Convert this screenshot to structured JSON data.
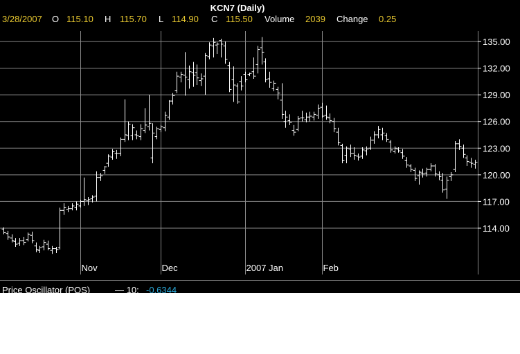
{
  "title": "KCN7 (Daily)",
  "quote": {
    "date": "3/28/2007",
    "open_label": "O",
    "open": "115.10",
    "high_label": "H",
    "high": "115.70",
    "low_label": "L",
    "low": "114.90",
    "close_label": "C",
    "close": "115.50",
    "volume_label": "Volume",
    "volume": "2039",
    "change_label": "Change",
    "change": "0.25"
  },
  "oscillator": {
    "label": "Price Oscillator (POS)",
    "param": "— 10:",
    "value": "-0.6344"
  },
  "colors": {
    "background": "#000000",
    "bars": "#ffffff",
    "grid": "#8a8a8a",
    "quote_text": "#e8c830",
    "quote_label": "#ffffff",
    "oscillator_value": "#2aa8d8"
  },
  "chart_data": {
    "type": "ohlc",
    "title": "KCN7 (Daily)",
    "ylim": [
      111.5,
      136.0
    ],
    "y_ticks": [
      "135.00",
      "132.00",
      "129.00",
      "126.00",
      "123.00",
      "120.00",
      "117.00",
      "114.00"
    ],
    "x_ticks": [
      "Nov",
      "Dec",
      "2007 Jan",
      "Feb"
    ],
    "grid": true,
    "series": [
      {
        "values": [
          [
            113.9,
            114.1,
            113.3,
            113.5
          ],
          [
            113.4,
            113.7,
            112.7,
            113.0
          ],
          [
            112.9,
            113.3,
            112.4,
            112.6
          ],
          [
            112.5,
            112.9,
            111.9,
            112.2
          ],
          [
            112.3,
            112.9,
            112.0,
            112.6
          ],
          [
            112.6,
            113.0,
            112.1,
            112.4
          ],
          [
            112.7,
            113.5,
            112.5,
            113.3
          ],
          [
            113.2,
            113.6,
            112.3,
            112.6
          ],
          [
            112.0,
            112.4,
            111.3,
            111.6
          ],
          [
            111.5,
            112.0,
            111.2,
            111.8
          ],
          [
            111.9,
            112.7,
            111.5,
            112.4
          ],
          [
            112.2,
            112.6,
            111.5,
            111.7
          ],
          [
            111.5,
            112.0,
            111.1,
            111.7
          ],
          [
            111.7,
            111.9,
            111.2,
            111.6
          ],
          [
            111.8,
            116.3,
            111.6,
            116.0
          ],
          [
            116.0,
            116.8,
            115.5,
            116.3
          ],
          [
            116.1,
            116.5,
            115.8,
            116.2
          ],
          [
            116.2,
            116.8,
            116.0,
            116.5
          ],
          [
            116.3,
            117.0,
            116.0,
            116.7
          ],
          [
            116.5,
            117.2,
            116.3,
            117.0
          ],
          [
            117.0,
            119.7,
            116.5,
            117.2
          ],
          [
            117.1,
            117.5,
            116.6,
            117.2
          ],
          [
            117.3,
            117.7,
            116.9,
            117.5
          ],
          [
            117.6,
            120.4,
            117.0,
            119.7
          ],
          [
            119.7,
            120.2,
            119.3,
            119.9
          ],
          [
            120.5,
            121.0,
            120.1,
            120.9
          ],
          [
            121.3,
            122.3,
            120.9,
            122.1
          ],
          [
            122.0,
            122.9,
            121.7,
            122.6
          ],
          [
            122.4,
            122.8,
            121.8,
            122.4
          ],
          [
            122.4,
            124.2,
            122.1,
            124.0
          ],
          [
            124.0,
            128.5,
            123.7,
            124.5
          ],
          [
            124.4,
            126.0,
            123.9,
            125.7
          ],
          [
            124.4,
            125.7,
            123.9,
            125.3
          ],
          [
            124.5,
            125.0,
            124.0,
            124.4
          ],
          [
            124.3,
            125.7,
            123.9,
            125.2
          ],
          [
            125.0,
            127.5,
            124.7,
            125.6
          ],
          [
            125.4,
            129.0,
            125.0,
            125.8
          ],
          [
            121.9,
            125.8,
            121.3,
            124.7
          ],
          [
            124.3,
            125.4,
            124.0,
            125.2
          ],
          [
            125.1,
            125.6,
            124.8,
            125.4
          ],
          [
            125.3,
            127.1,
            124.9,
            126.7
          ],
          [
            126.5,
            128.4,
            126.2,
            128.3
          ],
          [
            128.3,
            129.2,
            127.9,
            128.9
          ],
          [
            129.5,
            131.6,
            129.2,
            131.1
          ],
          [
            131.0,
            131.6,
            130.4,
            131.3
          ],
          [
            131.2,
            133.8,
            128.9,
            131.0
          ],
          [
            130.7,
            132.3,
            129.7,
            131.6
          ],
          [
            131.5,
            132.7,
            129.9,
            131.2
          ],
          [
            131.5,
            132.4,
            130.1,
            130.9
          ],
          [
            130.6,
            131.4,
            130.0,
            130.8
          ],
          [
            131.1,
            133.7,
            129.0,
            133.4
          ],
          [
            133.3,
            134.9,
            133.0,
            134.6
          ],
          [
            134.5,
            135.4,
            133.2,
            134.9
          ],
          [
            134.6,
            134.9,
            133.6,
            134.7
          ],
          [
            135.1,
            135.3,
            133.2,
            134.7
          ],
          [
            134.5,
            135.0,
            132.5,
            133.0
          ],
          [
            132.3,
            132.7,
            129.3,
            129.6
          ],
          [
            130.7,
            132.2,
            128.2,
            130.1
          ],
          [
            130.0,
            130.3,
            128.0,
            128.2
          ],
          [
            130.5,
            131.1,
            129.5,
            130.0
          ],
          [
            131.3,
            131.6,
            130.4,
            130.7
          ],
          [
            131.3,
            131.5,
            131.1,
            131.4
          ],
          [
            131.6,
            133.2,
            130.8,
            131.1
          ],
          [
            132.4,
            134.5,
            131.4,
            134.1
          ],
          [
            134.3,
            135.5,
            132.4,
            133.8
          ],
          [
            132.7,
            133.1,
            130.4,
            130.7
          ],
          [
            130.8,
            131.6,
            129.8,
            130.4
          ],
          [
            129.7,
            130.6,
            129.4,
            130.3
          ],
          [
            129.6,
            129.9,
            128.5,
            129.2
          ],
          [
            128.4,
            130.3,
            126.3,
            126.8
          ],
          [
            126.0,
            127.2,
            125.3,
            126.5
          ],
          [
            126.1,
            126.8,
            125.6,
            125.9
          ],
          [
            125.0,
            125.6,
            124.4,
            124.8
          ],
          [
            125.1,
            126.6,
            124.9,
            126.3
          ],
          [
            126.4,
            127.2,
            126.0,
            126.4
          ],
          [
            126.2,
            127.0,
            125.9,
            126.5
          ],
          [
            126.5,
            127.1,
            126.0,
            126.6
          ],
          [
            126.5,
            127.1,
            126.1,
            126.8
          ],
          [
            126.7,
            127.9,
            126.3,
            127.5
          ],
          [
            127.6,
            128.1,
            126.4,
            126.6
          ],
          [
            126.7,
            127.8,
            126.2,
            126.5
          ],
          [
            126.4,
            126.9,
            125.8,
            126.1
          ],
          [
            126.0,
            126.4,
            124.8,
            125.2
          ],
          [
            124.8,
            125.3,
            123.3,
            123.6
          ],
          [
            123.3,
            123.5,
            121.3,
            121.6
          ],
          [
            122.2,
            123.2,
            121.3,
            123.0
          ],
          [
            122.9,
            123.4,
            122.0,
            122.4
          ],
          [
            122.4,
            123.1,
            121.7,
            122.2
          ],
          [
            122.1,
            122.4,
            121.6,
            122.0
          ],
          [
            122.1,
            123.1,
            121.8,
            122.8
          ],
          [
            122.7,
            123.2,
            122.2,
            122.9
          ],
          [
            123.0,
            124.3,
            122.8,
            123.9
          ],
          [
            123.9,
            124.9,
            123.5,
            124.5
          ],
          [
            124.5,
            125.5,
            124.1,
            125.1
          ],
          [
            124.5,
            125.3,
            123.9,
            124.7
          ],
          [
            124.4,
            124.7,
            123.7,
            124.0
          ],
          [
            123.7,
            123.9,
            122.5,
            122.8
          ],
          [
            122.6,
            123.2,
            122.4,
            123.0
          ],
          [
            122.9,
            123.1,
            122.5,
            122.7
          ],
          [
            122.5,
            122.9,
            121.8,
            122.1
          ],
          [
            121.6,
            122.0,
            120.8,
            121.1
          ],
          [
            121.0,
            121.2,
            120.3,
            120.6
          ],
          [
            120.5,
            120.8,
            119.3,
            119.6
          ],
          [
            119.9,
            120.5,
            118.9,
            120.3
          ],
          [
            120.2,
            120.7,
            119.7,
            120.1
          ],
          [
            120.2,
            120.8,
            119.8,
            120.6
          ],
          [
            120.6,
            121.3,
            120.4,
            121.0
          ],
          [
            121.0,
            121.2,
            119.8,
            120.1
          ],
          [
            120.0,
            120.4,
            119.4,
            119.8
          ],
          [
            119.4,
            120.2,
            118.0,
            118.3
          ],
          [
            118.4,
            119.8,
            117.3,
            119.4
          ],
          [
            119.8,
            120.3,
            119.3,
            120.0
          ],
          [
            120.6,
            123.8,
            120.3,
            123.5
          ],
          [
            123.5,
            124.0,
            122.8,
            123.2
          ],
          [
            123.0,
            123.4,
            121.9,
            122.3
          ],
          [
            121.9,
            122.2,
            121.0,
            121.5
          ],
          [
            121.4,
            121.9,
            120.8,
            121.3
          ],
          [
            121.2,
            121.7,
            120.7,
            121.4
          ]
        ]
      }
    ]
  }
}
